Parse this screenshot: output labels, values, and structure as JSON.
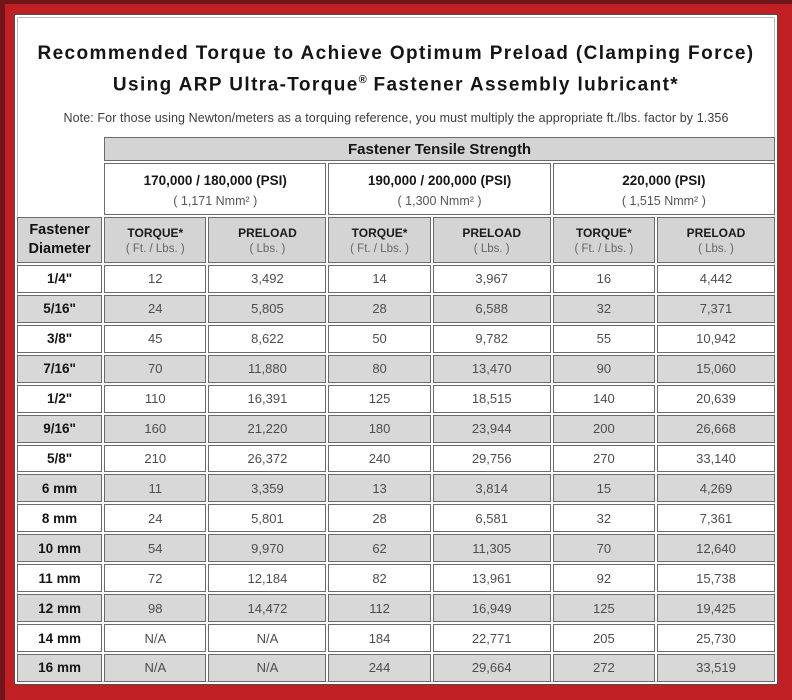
{
  "colors": {
    "border_red": "#c01f24",
    "border_dark_edge": "#70151a",
    "header_gray": "#d4d4d4",
    "row_shaded_gray": "#d8d8d8",
    "cell_border": "#6b6b6b"
  },
  "title": {
    "line1": "Recommended Torque to Achieve Optimum Preload (Clamping Force)",
    "line2_pre": "Using ARP Ultra-Torque",
    "line2_sup": "®",
    "line2_post": " Fastener Assembly lubricant*",
    "note": "Note: For those using Newton/meters as a torquing reference, you must multiply the appropriate ft./lbs. factor by 1.356"
  },
  "table": {
    "group_header": "Fastener Tensile Strength",
    "corner_header": "Fastener Diameter",
    "strength_groups": [
      {
        "psi": "170,000 / 180,000 (PSI)",
        "nmm": "( 1,171 Nmm² )"
      },
      {
        "psi": "190,000 / 200,000 (PSI)",
        "nmm": "( 1,300 Nmm² )"
      },
      {
        "psi": "220,000 (PSI)",
        "nmm": "( 1,515 Nmm² )"
      }
    ],
    "col_headers": {
      "torque_label": "TORQUE*",
      "torque_sub": "( Ft. / Lbs. )",
      "preload_label": "PRELOAD",
      "preload_sub": "( Lbs. )"
    },
    "rows": [
      {
        "diameter": "1/4\"",
        "values": [
          "12",
          "3,492",
          "14",
          "3,967",
          "16",
          "4,442"
        ]
      },
      {
        "diameter": "5/16\"",
        "values": [
          "24",
          "5,805",
          "28",
          "6,588",
          "32",
          "7,371"
        ]
      },
      {
        "diameter": "3/8\"",
        "values": [
          "45",
          "8,622",
          "50",
          "9,782",
          "55",
          "10,942"
        ]
      },
      {
        "diameter": "7/16\"",
        "values": [
          "70",
          "11,880",
          "80",
          "13,470",
          "90",
          "15,060"
        ]
      },
      {
        "diameter": "1/2\"",
        "values": [
          "110",
          "16,391",
          "125",
          "18,515",
          "140",
          "20,639"
        ]
      },
      {
        "diameter": "9/16\"",
        "values": [
          "160",
          "21,220",
          "180",
          "23,944",
          "200",
          "26,668"
        ]
      },
      {
        "diameter": "5/8\"",
        "values": [
          "210",
          "26,372",
          "240",
          "29,756",
          "270",
          "33,140"
        ]
      },
      {
        "diameter": "6 mm",
        "values": [
          "11",
          "3,359",
          "13",
          "3,814",
          "15",
          "4,269"
        ]
      },
      {
        "diameter": "8 mm",
        "values": [
          "24",
          "5,801",
          "28",
          "6,581",
          "32",
          "7,361"
        ]
      },
      {
        "diameter": "10 mm",
        "values": [
          "54",
          "9,970",
          "62",
          "11,305",
          "70",
          "12,640"
        ]
      },
      {
        "diameter": "11 mm",
        "values": [
          "72",
          "12,184",
          "82",
          "13,961",
          "92",
          "15,738"
        ]
      },
      {
        "diameter": "12 mm",
        "values": [
          "98",
          "14,472",
          "112",
          "16,949",
          "125",
          "19,425"
        ]
      },
      {
        "diameter": "14 mm",
        "values": [
          "N/A",
          "N/A",
          "184",
          "22,771",
          "205",
          "25,730"
        ]
      },
      {
        "diameter": "16 mm",
        "values": [
          "N/A",
          "N/A",
          "244",
          "29,664",
          "272",
          "33,519"
        ]
      }
    ]
  }
}
